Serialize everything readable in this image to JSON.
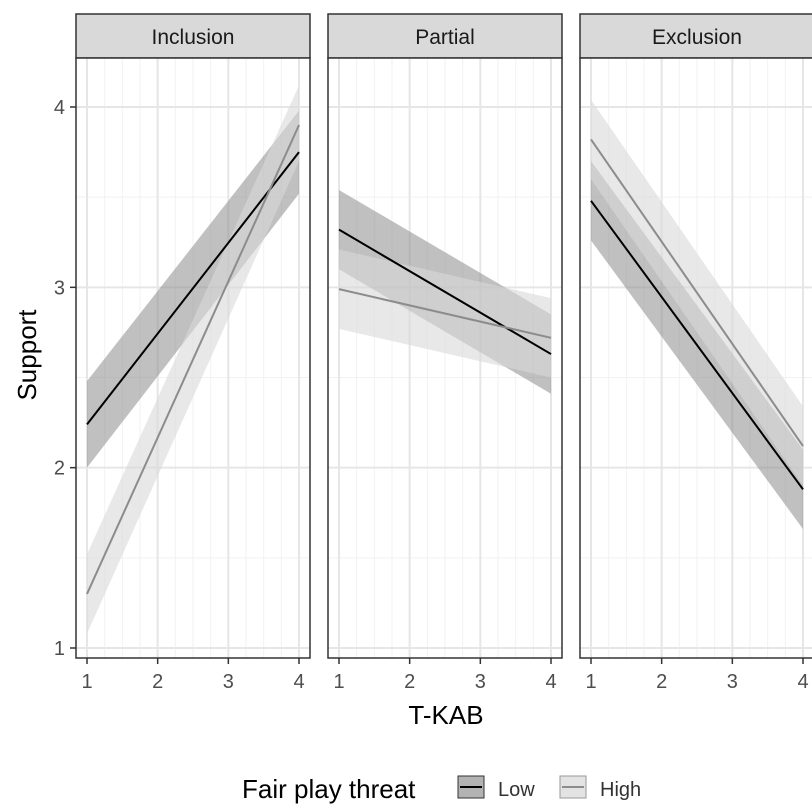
{
  "chart_data": {
    "type": "line",
    "xlabel": "T-KAB",
    "ylabel": "Support",
    "xlim": [
      1,
      4
    ],
    "ylim": [
      1,
      4
    ],
    "xticks": [
      1,
      2,
      3,
      4
    ],
    "yticks": [
      1,
      2,
      3,
      4
    ],
    "grid": true,
    "legend": {
      "title": "Fair play threat",
      "position": "bottom",
      "entries": [
        {
          "label": "Low",
          "color": "#000000",
          "fill": "#b3b3b3"
        },
        {
          "label": "High",
          "color": "#8c8c8c",
          "fill": "#e3e3e3"
        }
      ]
    },
    "panels": [
      {
        "title": "Inclusion",
        "series": [
          {
            "name": "Low",
            "x": [
              1,
              4
            ],
            "y": [
              2.24,
              3.75
            ],
            "ci_lower": [
              2.0,
              3.52
            ],
            "ci_upper": [
              2.48,
              3.98
            ]
          },
          {
            "name": "High",
            "x": [
              1,
              4
            ],
            "y": [
              1.3,
              3.9
            ],
            "ci_lower": [
              1.08,
              3.7
            ],
            "ci_upper": [
              1.52,
              4.12
            ]
          }
        ]
      },
      {
        "title": "Partial",
        "series": [
          {
            "name": "Low",
            "x": [
              1,
              4
            ],
            "y": [
              3.32,
              2.63
            ],
            "ci_lower": [
              3.1,
              2.41
            ],
            "ci_upper": [
              3.54,
              2.85
            ]
          },
          {
            "name": "High",
            "x": [
              1,
              4
            ],
            "y": [
              2.99,
              2.72
            ],
            "ci_lower": [
              2.77,
              2.5
            ],
            "ci_upper": [
              3.21,
              2.94
            ]
          }
        ]
      },
      {
        "title": "Exclusion",
        "series": [
          {
            "name": "Low",
            "x": [
              1,
              4
            ],
            "y": [
              3.48,
              1.88
            ],
            "ci_lower": [
              3.26,
              1.66
            ],
            "ci_upper": [
              3.7,
              2.1
            ]
          },
          {
            "name": "High",
            "x": [
              1,
              4
            ],
            "y": [
              3.82,
              2.12
            ],
            "ci_lower": [
              3.6,
              1.9
            ],
            "ci_upper": [
              4.04,
              2.34
            ]
          }
        ]
      }
    ]
  }
}
